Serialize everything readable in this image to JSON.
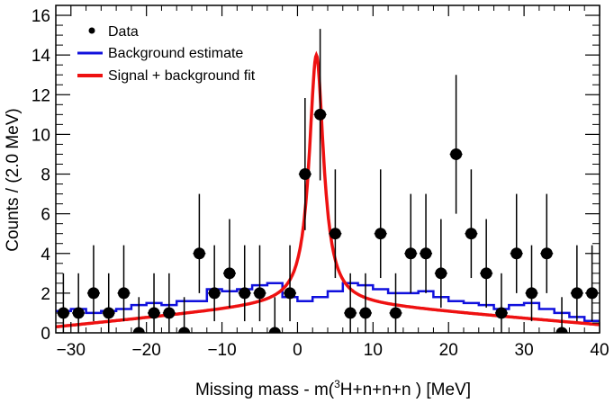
{
  "chart_data": {
    "type": "scatter",
    "xlabel_prefix": "Missing mass - m(",
    "xlabel_sup": "3",
    "xlabel_suffix": "H+n+n+n ) [MeV]",
    "ylabel": "Counts / (2.0 MeV)",
    "xlim": [
      -32,
      40
    ],
    "ylim": [
      0,
      16.5
    ],
    "xticks": [
      -30,
      -20,
      -10,
      0,
      10,
      20,
      30,
      40
    ],
    "yticks": [
      0,
      2,
      4,
      6,
      8,
      10,
      12,
      14,
      16
    ],
    "grid": false,
    "legend_position": "top-left",
    "legend": {
      "data": "Data",
      "background": "Background estimate",
      "fit": "Signal + background fit"
    },
    "colors": {
      "data": "#000000",
      "background": "#1010dd",
      "fit": "#ee1111"
    },
    "data_points": [
      {
        "x": -31,
        "y": 1
      },
      {
        "x": -29,
        "y": 1
      },
      {
        "x": -27,
        "y": 2
      },
      {
        "x": -25,
        "y": 1
      },
      {
        "x": -23,
        "y": 2
      },
      {
        "x": -21,
        "y": 0
      },
      {
        "x": -19,
        "y": 1
      },
      {
        "x": -17,
        "y": 1
      },
      {
        "x": -15,
        "y": 0
      },
      {
        "x": -13,
        "y": 4
      },
      {
        "x": -11,
        "y": 2
      },
      {
        "x": -9,
        "y": 3
      },
      {
        "x": -7,
        "y": 2
      },
      {
        "x": -5,
        "y": 2
      },
      {
        "x": -3,
        "y": 0
      },
      {
        "x": -1,
        "y": 2
      },
      {
        "x": 1,
        "y": 8
      },
      {
        "x": 3,
        "y": 11
      },
      {
        "x": 5,
        "y": 5
      },
      {
        "x": 7,
        "y": 1
      },
      {
        "x": 9,
        "y": 1
      },
      {
        "x": 11,
        "y": 5
      },
      {
        "x": 13,
        "y": 1
      },
      {
        "x": 15,
        "y": 4
      },
      {
        "x": 17,
        "y": 4
      },
      {
        "x": 19,
        "y": 3
      },
      {
        "x": 21,
        "y": 9
      },
      {
        "x": 23,
        "y": 5
      },
      {
        "x": 25,
        "y": 3
      },
      {
        "x": 27,
        "y": 1
      },
      {
        "x": 29,
        "y": 4
      },
      {
        "x": 31,
        "y": 2
      },
      {
        "x": 33,
        "y": 4
      },
      {
        "x": 35,
        "y": 0
      },
      {
        "x": 37,
        "y": 2
      },
      {
        "x": 39,
        "y": 2
      }
    ],
    "background_estimate": {
      "bin_edges": [
        -32,
        -30,
        -28,
        -26,
        -24,
        -22,
        -20,
        -18,
        -16,
        -14,
        -12,
        -10,
        -8,
        -6,
        -4,
        -2,
        0,
        2,
        4,
        6,
        8,
        10,
        12,
        14,
        16,
        18,
        20,
        22,
        24,
        26,
        28,
        30,
        32,
        34,
        36,
        38,
        40
      ],
      "values": [
        1.1,
        1.2,
        1.0,
        1.1,
        1.2,
        1.4,
        1.5,
        1.4,
        1.6,
        1.6,
        2.2,
        2.1,
        2.2,
        2.4,
        2.5,
        1.8,
        1.6,
        1.8,
        2.1,
        2.5,
        2.4,
        2.2,
        2.0,
        2.0,
        2.1,
        1.8,
        1.6,
        1.5,
        1.4,
        1.2,
        1.4,
        1.5,
        1.2,
        1.0,
        0.8,
        0.6
      ]
    },
    "fit": {
      "peak_position": 2.5,
      "peak_height": 14.0,
      "peak_width": 1.15,
      "background_level": 1.6,
      "background_slope_left": 0.038,
      "background_slope_right": 0.032
    }
  }
}
